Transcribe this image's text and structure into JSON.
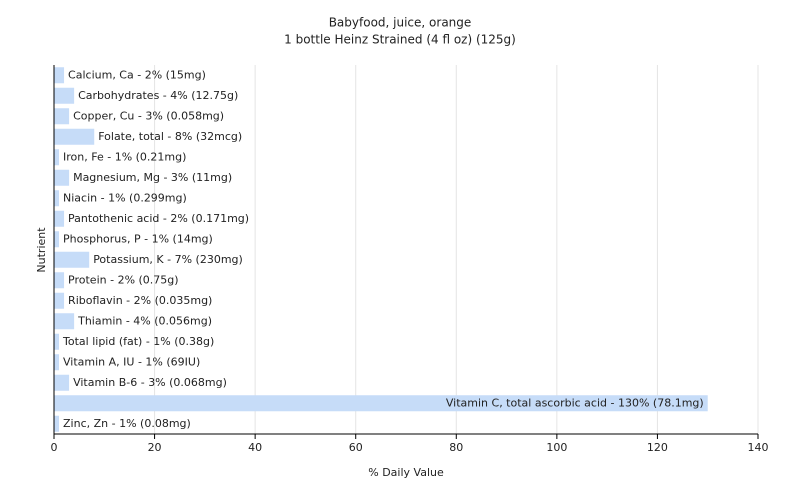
{
  "chart_data": {
    "type": "bar",
    "orientation": "horizontal",
    "title": "Babyfood, juice, orange",
    "subtitle": "1 bottle Heinz Strained (4 fl oz) (125g)",
    "x_label": "% Daily Value",
    "y_label": "Nutrient",
    "values": [
      2,
      4,
      3,
      8,
      1,
      3,
      1,
      2,
      1,
      7,
      2,
      2,
      4,
      1,
      1,
      3,
      130,
      1
    ],
    "value_labels": [
      "Calcium, Ca - 2% (15mg)",
      "Carbohydrates - 4% (12.75g)",
      "Copper, Cu - 3% (0.058mg)",
      "Folate, total - 8% (32mcg)",
      "Iron, Fe - 1% (0.21mg)",
      "Magnesium, Mg - 3% (11mg)",
      "Niacin - 1% (0.299mg)",
      "Pantothenic acid - 2% (0.171mg)",
      "Phosphorus, P - 1% (14mg)",
      "Potassium, K - 7% (230mg)",
      "Protein - 2% (0.75g)",
      "Riboflavin - 2% (0.035mg)",
      "Thiamin - 4% (0.056mg)",
      "Total lipid (fat) - 1% (0.38g)",
      "Vitamin A, IU - 1% (69IU)",
      "Vitamin B-6 - 3% (0.068mg)",
      "Vitamin C, total ascorbic acid - 130% (78.1mg)",
      "Zinc, Zn - 1% (0.08mg)"
    ],
    "color": "#c6dcf8",
    "xlim": [
      0,
      140
    ],
    "xticks": [
      0,
      20,
      40,
      60,
      80,
      100,
      120,
      140
    ],
    "grid": true
  }
}
